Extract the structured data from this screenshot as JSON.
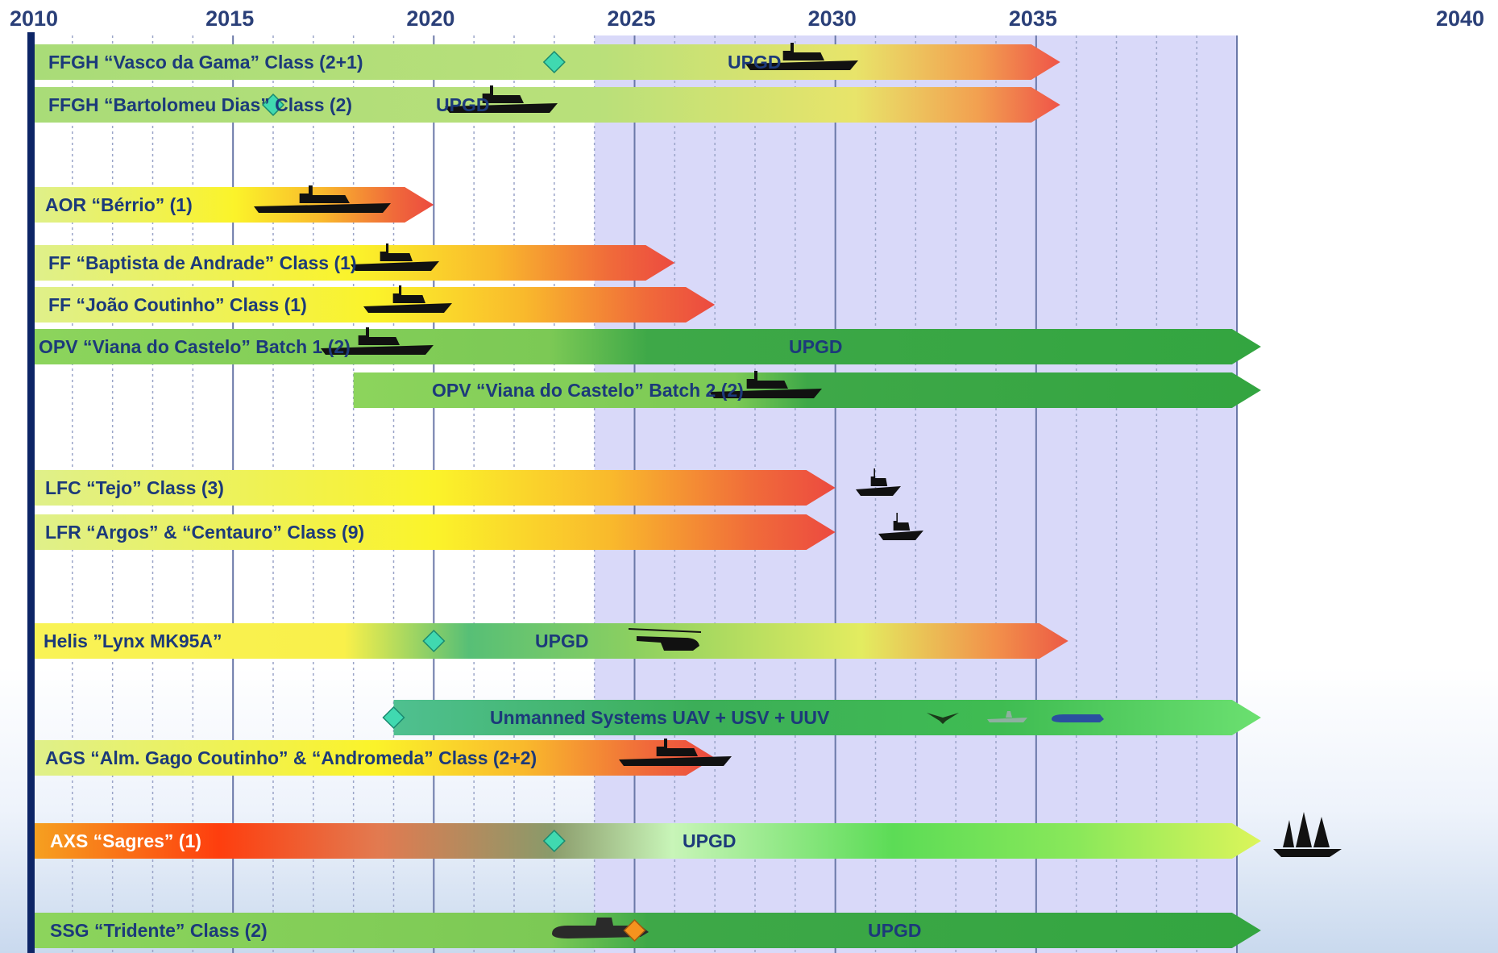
{
  "chart_data": {
    "type": "timeline",
    "x_ticks": [
      "2010",
      "2015",
      "2020",
      "2025",
      "2030",
      "2035",
      "2040"
    ],
    "xlim": [
      2010,
      2040
    ],
    "highlight_start": 2024,
    "grid": "vertical dotted, yearly",
    "colors": {
      "frame": "#0d2566",
      "highlight": "#d8d8f8",
      "grid": "#7e8cb8",
      "milestone": "#40d9b0",
      "milestone_alt": "#f5931e"
    },
    "bars": [
      {
        "label": "FFGH “Vasco da Gama” Class (2+1)",
        "start": 2010,
        "end": 2035.6,
        "style": "green-red",
        "milestone": 2023,
        "upgd": 2025,
        "icon": "frigate"
      },
      {
        "label": "FFGH “Bartolomeu Dias” Class (2)",
        "start": 2010,
        "end": 2035.6,
        "style": "green-red",
        "milestone": 2016,
        "upgd": 2019.5,
        "icon": "frigate"
      },
      {
        "label": "AOR “Bérrio” (1)",
        "start": 2010,
        "end": 2020,
        "style": "yellow-red",
        "icon": "tanker"
      },
      {
        "label": "FF “Baptista de Andrade” Class (1)",
        "start": 2010,
        "end": 2026,
        "style": "yellow-red",
        "icon": "corvette"
      },
      {
        "label": "FF “João Coutinho” Class (1)",
        "start": 2010,
        "end": 2027,
        "style": "yellow-red",
        "icon": "corvette"
      },
      {
        "label": "OPV  “Viana do Castelo” Batch 1 (2)",
        "start": 2010,
        "end": 2040.6,
        "style": "green",
        "upgd": 2025.8,
        "icon": "opv"
      },
      {
        "label": "OPV  “Viana do Castelo” Batch 2 (2)",
        "start": 2018,
        "end": 2040.6,
        "style": "green",
        "icon": "opv"
      },
      {
        "label": "LFC “Tejo” Class (3)",
        "start": 2010,
        "end": 2030,
        "style": "yellow-red",
        "icon": "patrol"
      },
      {
        "label": "LFR “Argos” & “Centauro” Class (9)",
        "start": 2010,
        "end": 2030,
        "style": "yellow-red",
        "icon": "patrol"
      },
      {
        "label": "Helis ”Lynx MK95A”",
        "start": 2010,
        "end": 2035.8,
        "style": "heli",
        "milestone": 2020,
        "upgd": 2020.5,
        "icon": "helicopter"
      },
      {
        "label": "Unmanned Systems  UAV + USV + UUV",
        "start": 2019,
        "end": 2040.6,
        "style": "unmanned",
        "milestone": 2019,
        "icon": "unmanned"
      },
      {
        "label": "AGS “Alm. Gago Coutinho” & “Andromeda” Class (2+2)",
        "start": 2010,
        "end": 2027,
        "style": "yellow-red",
        "icon": "survey"
      },
      {
        "label": "AXS “Sagres” (1)",
        "start": 2010,
        "end": 2040.6,
        "style": "sagres",
        "milestone": 2023,
        "upgd": 2023.5,
        "icon": "tallship"
      },
      {
        "label": "SSG “Tridente” Class (2)",
        "start": 2010,
        "end": 2040.6,
        "style": "green",
        "milestone": 2025,
        "milestone_color": "orange",
        "upgd": 2027.5,
        "icon": "submarine"
      }
    ],
    "upgd_label": "UPGD"
  }
}
